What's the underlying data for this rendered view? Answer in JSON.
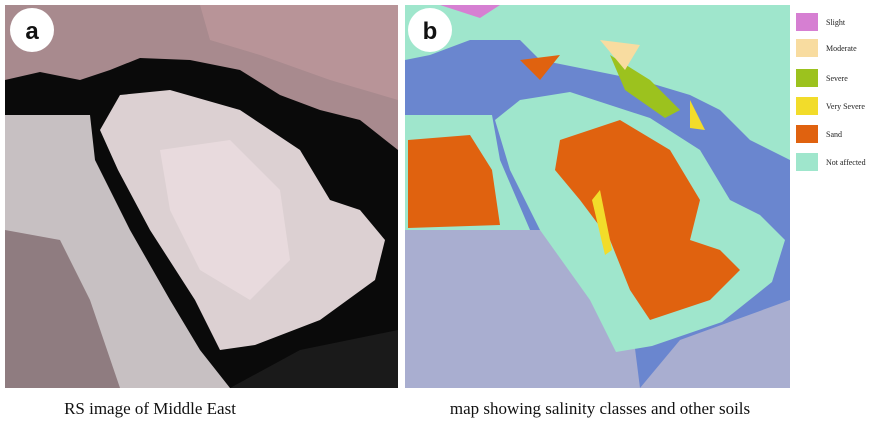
{
  "panels": [
    {
      "label": "a",
      "caption": "RS image of Middle East"
    },
    {
      "label": "b",
      "caption": "map showing salinity classes and other soils"
    }
  ],
  "legend": [
    {
      "label": "Slight",
      "color": "#d67fd2"
    },
    {
      "label": "Moderate",
      "color": "#f8dca0"
    },
    {
      "label": "Severe",
      "color": "#9cc21e"
    },
    {
      "label": "Very Severe",
      "color": "#f2dc2a"
    },
    {
      "label": "Sand",
      "color": "#e0620f"
    },
    {
      "label": "Not affected",
      "color": "#9fe6cc"
    }
  ]
}
